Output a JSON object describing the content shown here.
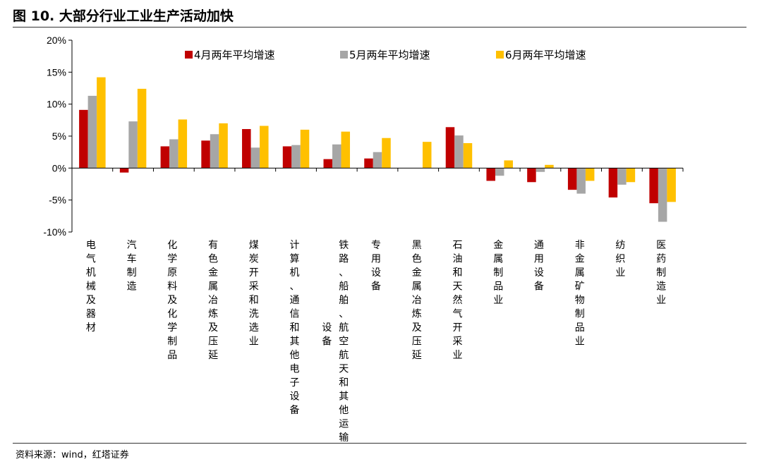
{
  "figure": {
    "title": "图 10. 大部分行业工业生产活动加快",
    "source": "资料来源：wind，红塔证券"
  },
  "chart_data": {
    "type": "bar",
    "title": "",
    "xlabel": "",
    "ylabel": "",
    "ylim": [
      -10,
      20
    ],
    "yticks": [
      -10,
      -5,
      0,
      5,
      10,
      15,
      20
    ],
    "ytick_labels": [
      "-10%",
      "-5%",
      "0%",
      "5%",
      "10%",
      "15%",
      "20%"
    ],
    "legend_position": "top",
    "grid": false,
    "categories": [
      [
        "电气机械及器材"
      ],
      [
        "汽车制造"
      ],
      [
        "化学原料及化学制品"
      ],
      [
        "有色金属冶炼及压延"
      ],
      [
        "煤炭开采和洗选业"
      ],
      [
        "计算机、通信和其他电子设备"
      ],
      [
        "铁路、船舶、航空航天和其他运输",
        "设备"
      ],
      [
        "专用设备"
      ],
      [
        "黑色金属冶炼及压延"
      ],
      [
        "石油和天然气开采业"
      ],
      [
        "金属制品业"
      ],
      [
        "通用设备"
      ],
      [
        "非金属矿物制品业"
      ],
      [
        "纺织业"
      ],
      [
        "医药制造业"
      ]
    ],
    "series": [
      {
        "name": "4月两年平均增速",
        "color": "#C00000",
        "values": [
          9.1,
          -0.7,
          3.4,
          4.3,
          6.1,
          3.4,
          1.4,
          1.5,
          0.0,
          6.4,
          -2.0,
          -2.2,
          -3.4,
          -4.6,
          -5.5
        ]
      },
      {
        "name": "5月两年平均增速",
        "color": "#A6A6A6",
        "values": [
          11.3,
          7.3,
          4.5,
          5.3,
          3.2,
          3.6,
          3.7,
          2.5,
          0.0,
          5.1,
          -1.2,
          -0.6,
          -4.0,
          -2.6,
          -8.4
        ]
      },
      {
        "name": "6月两年平均增速",
        "color": "#FFC000",
        "values": [
          14.2,
          12.4,
          7.6,
          7.0,
          6.6,
          6.0,
          5.7,
          4.7,
          4.1,
          3.9,
          1.2,
          0.5,
          -2.0,
          -2.2,
          -5.3
        ]
      }
    ]
  }
}
